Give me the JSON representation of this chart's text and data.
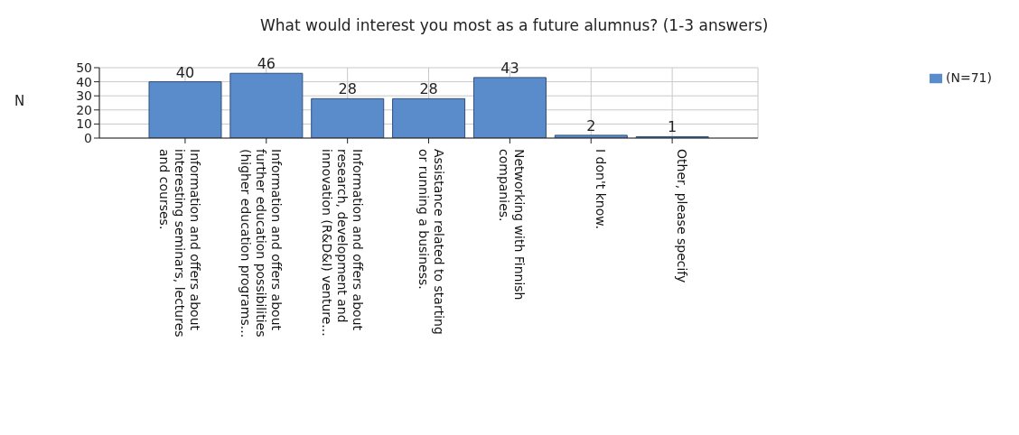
{
  "chart_data": {
    "type": "bar",
    "title": "What would interest you most as a future alumnus? (1-3 answers)",
    "ylabel": "N",
    "categories": [
      "Information and offers about interesting seminars, lectures and courses.",
      "Information and offers about further education possibilities (higher education programs...",
      "Information and offers about research, development and innovation (R&D&I) venture...",
      "Assistance related to starting or running a business.",
      "Networking with Finnish companies.",
      "I don't know.",
      "Other, please specify"
    ],
    "series": [
      {
        "name": "(N=71)",
        "color": "#5a8ccc",
        "values": [
          40,
          46,
          28,
          28,
          43,
          2,
          1
        ]
      }
    ],
    "ylim": [
      0,
      50
    ],
    "yticks": [
      0,
      10,
      20,
      30,
      40,
      50
    ],
    "grid": true,
    "legend": "top right",
    "data_labels": true
  }
}
